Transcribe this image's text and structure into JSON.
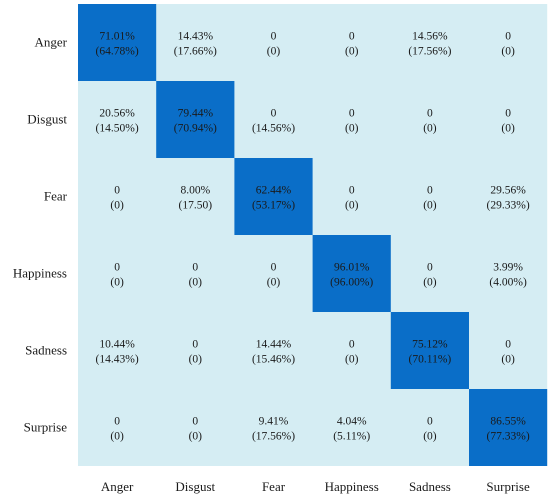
{
  "chart_data": {
    "type": "heatmap",
    "title": "",
    "xlabel": "",
    "ylabel": "",
    "row_labels": [
      "Anger",
      "Disgust",
      "Fear",
      "Happiness",
      "Sadness",
      "Surprise"
    ],
    "col_labels": [
      "Anger",
      "Disgust",
      "Fear",
      "Happiness",
      "Sadness",
      "Surprise"
    ],
    "cells": [
      [
        {
          "primary": "71.01%",
          "secondary": "(64.78%)",
          "highlight": true
        },
        {
          "primary": "14.43%",
          "secondary": "(17.66%)",
          "highlight": false
        },
        {
          "primary": "0",
          "secondary": "(0)",
          "highlight": false
        },
        {
          "primary": "0",
          "secondary": "(0)",
          "highlight": false
        },
        {
          "primary": "14.56%",
          "secondary": "(17.56%)",
          "highlight": false
        },
        {
          "primary": "0",
          "secondary": "(0)",
          "highlight": false
        }
      ],
      [
        {
          "primary": "20.56%",
          "secondary": "(14.50%)",
          "highlight": false
        },
        {
          "primary": "79.44%",
          "secondary": "(70.94%)",
          "highlight": true
        },
        {
          "primary": "0",
          "secondary": "(14.56%)",
          "highlight": false
        },
        {
          "primary": "0",
          "secondary": "(0)",
          "highlight": false
        },
        {
          "primary": "0",
          "secondary": "(0)",
          "highlight": false
        },
        {
          "primary": "0",
          "secondary": "(0)",
          "highlight": false
        }
      ],
      [
        {
          "primary": "0",
          "secondary": "(0)",
          "highlight": false
        },
        {
          "primary": "8.00%",
          "secondary": "(17.50)",
          "highlight": false
        },
        {
          "primary": "62.44%",
          "secondary": "(53.17%)",
          "highlight": true
        },
        {
          "primary": "0",
          "secondary": "(0)",
          "highlight": false
        },
        {
          "primary": "0",
          "secondary": "(0)",
          "highlight": false
        },
        {
          "primary": "29.56%",
          "secondary": "(29.33%)",
          "highlight": false
        }
      ],
      [
        {
          "primary": "0",
          "secondary": "(0)",
          "highlight": false
        },
        {
          "primary": "0",
          "secondary": "(0)",
          "highlight": false
        },
        {
          "primary": "0",
          "secondary": "(0)",
          "highlight": false
        },
        {
          "primary": "96.01%",
          "secondary": "(96.00%)",
          "highlight": true
        },
        {
          "primary": "0",
          "secondary": "(0)",
          "highlight": false
        },
        {
          "primary": "3.99%",
          "secondary": "(4.00%)",
          "highlight": false
        }
      ],
      [
        {
          "primary": "10.44%",
          "secondary": "(14.43%)",
          "highlight": false
        },
        {
          "primary": "0",
          "secondary": "(0)",
          "highlight": false
        },
        {
          "primary": "14.44%",
          "secondary": "(15.46%)",
          "highlight": false
        },
        {
          "primary": "0",
          "secondary": "(0)",
          "highlight": false
        },
        {
          "primary": "75.12%",
          "secondary": "(70.11%)",
          "highlight": true
        },
        {
          "primary": "0",
          "secondary": "(0)",
          "highlight": false
        }
      ],
      [
        {
          "primary": "0",
          "secondary": "(0)",
          "highlight": false
        },
        {
          "primary": "0",
          "secondary": "(0)",
          "highlight": false
        },
        {
          "primary": "9.41%",
          "secondary": "(17.56%)",
          "highlight": false
        },
        {
          "primary": "4.04%",
          "secondary": "(5.11%)",
          "highlight": false
        },
        {
          "primary": "0",
          "secondary": "(0)",
          "highlight": false
        },
        {
          "primary": "86.55%",
          "secondary": "(77.33%)",
          "highlight": true
        }
      ]
    ],
    "colors": {
      "background": "#d5edf3",
      "highlight": "#0a6ec8",
      "text": "#1a1a1a"
    },
    "grid": false,
    "legend": "none"
  }
}
